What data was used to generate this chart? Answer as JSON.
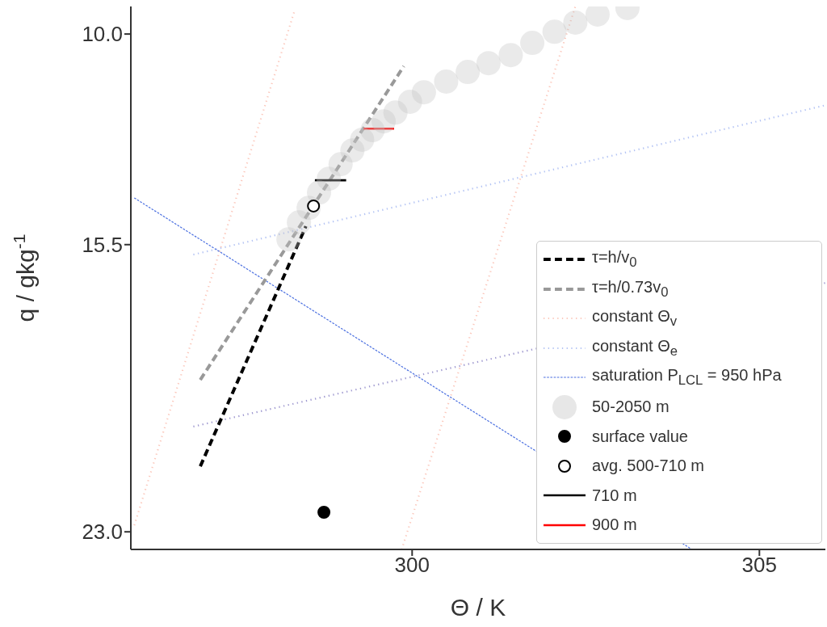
{
  "chart_data": {
    "type": "line",
    "xlabel": "Θ / K",
    "ylabel": "q / gkg$^{-1}$",
    "xlim": [
      295.95,
      305.95
    ],
    "xticks": [
      300,
      305
    ],
    "ylim": [
      23.46,
      9.28
    ],
    "yticks": [
      {
        "value": 10,
        "label": "10.0"
      },
      {
        "value": 15.5,
        "label": "15.5"
      },
      {
        "value": 23,
        "label": "23.0"
      }
    ],
    "grid": false,
    "legend": "bottom right",
    "series": [
      {
        "name": "constant Θ$_{v}$",
        "color": "#fbc8bc",
        "line_style": "dotted",
        "x": [
          296.0,
          298.3,
          299.0,
          299.85,
          302.35
        ],
        "values": [
          22.83,
          9.43,
          null,
          23.46,
          9.28
        ]
      },
      {
        "name": "constant Θ$_{e}$",
        "type": "line",
        "color": "#b4c4f4",
        "line_style": "dotted",
        "x": [
          296.85,
          305.95
        ],
        "values": [
          15.76,
          11.86
        ]
      },
      {
        "type": "line",
        "color": "#a09ad0",
        "line_style": "dotted",
        "x": [
          296.85,
          305.95
        ],
        "values": [
          20.25,
          16.5
        ]
      },
      {
        "name": "saturation P$_{LCL}$ = 950 hPa",
        "type": "line",
        "color": "#4a6fe0",
        "line_style": "dashed",
        "x": [
          296.0,
          304.03
        ],
        "values": [
          14.28,
          23.46
        ]
      },
      {
        "name": "50-2050 m",
        "type": "scatter",
        "color": "#c4c4c4",
        "marker": "circle",
        "x": [
          298.22,
          298.37,
          298.51,
          298.66,
          298.8,
          298.97,
          299.14,
          299.28,
          299.43,
          299.59,
          299.76,
          299.97,
          300.17,
          300.49,
          300.8,
          301.1,
          301.42,
          301.73,
          302.05,
          302.35,
          302.67,
          303.1
        ],
        "values": [
          15.36,
          14.92,
          14.54,
          14.14,
          13.78,
          13.4,
          13.04,
          12.76,
          12.51,
          12.28,
          12.05,
          11.77,
          11.52,
          11.24,
          10.99,
          10.76,
          10.55,
          10.23,
          9.94,
          9.7,
          9.49,
          9.32
        ]
      },
      {
        "name": "τ=h/v$_{0}$",
        "type": "line",
        "color": "#000000",
        "line_style": "dashed",
        "x": [
          296.95,
          298.47
        ],
        "values": [
          21.29,
          15.02
        ]
      },
      {
        "name": "τ=h/0.73v$_{0}$",
        "type": "line",
        "color": "#999999",
        "line_style": "dashed",
        "x": [
          296.95,
          299.88
        ],
        "values": [
          19.03,
          10.84
        ]
      },
      {
        "name": "surface value",
        "type": "scatter",
        "color": "#000000",
        "marker": "circle",
        "x": [
          298.73
        ],
        "values": [
          22.49
        ]
      },
      {
        "name": "avg. 500-710 m",
        "type": "scatter",
        "color": "#ffffff",
        "marker": "circle",
        "x": [
          298.58
        ],
        "values": [
          14.49
        ]
      },
      {
        "name": "710 m",
        "type": "line",
        "color": "#000000",
        "line_style": "solid",
        "x": [
          298.6,
          299.05
        ],
        "values": [
          13.82,
          13.82
        ]
      },
      {
        "name": "900 m",
        "color": "#ff0000",
        "line_style": "solid",
        "x": [
          299.3,
          299.74
        ],
        "values": [
          12.47,
          12.47
        ]
      }
    ]
  }
}
